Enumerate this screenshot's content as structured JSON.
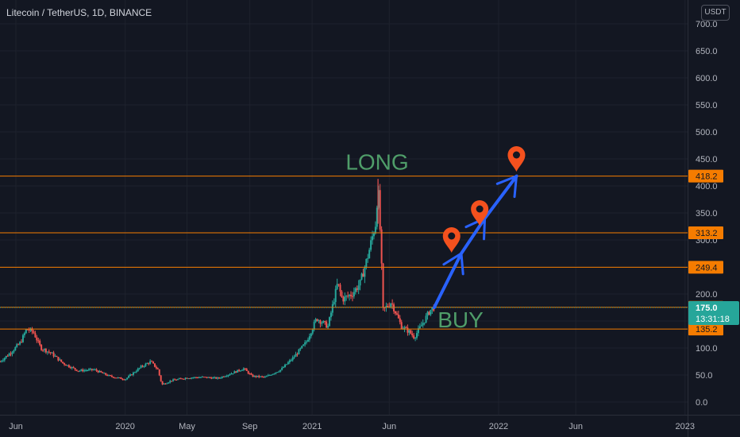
{
  "header": {
    "title": "Litecoin / TetherUS, 1D, BINANCE",
    "currency_label": "USDT"
  },
  "chart_data": {
    "type": "candlestick",
    "y_ticks": [
      "700.0",
      "650.0",
      "600.0",
      "550.0",
      "500.0",
      "450.0",
      "400.0",
      "350.0",
      "300.0",
      "250.0",
      "200.0",
      "150.0",
      "100.0",
      "50.0",
      "0.0"
    ],
    "y_tick_values": [
      700,
      650,
      600,
      550,
      500,
      450,
      400,
      350,
      300,
      250,
      200,
      150,
      100,
      50,
      0
    ],
    "ylim": [
      -10,
      725
    ],
    "x_ticks": [
      "Jun",
      "2020",
      "May",
      "Sep",
      "2021",
      "Jun",
      "2022",
      "Jun",
      "2023"
    ],
    "x_tick_dates": [
      "2019-06-01",
      "2020-01-01",
      "2020-05-01",
      "2020-09-01",
      "2021-01-01",
      "2021-06-01",
      "2022-01-01",
      "2022-06-01",
      "2023-01-01"
    ],
    "xlim": [
      "2019-05-01",
      "2023-01-06"
    ],
    "price_path": [
      [
        "2019-05-01",
        75
      ],
      [
        "2019-05-20",
        90
      ],
      [
        "2019-06-10",
        110
      ],
      [
        "2019-06-22",
        135
      ],
      [
        "2019-07-05",
        130
      ],
      [
        "2019-07-20",
        100
      ],
      [
        "2019-08-10",
        90
      ],
      [
        "2019-09-01",
        72
      ],
      [
        "2019-10-01",
        58
      ],
      [
        "2019-11-01",
        60
      ],
      [
        "2019-12-01",
        48
      ],
      [
        "2020-01-01",
        42
      ],
      [
        "2020-02-01",
        65
      ],
      [
        "2020-02-20",
        75
      ],
      [
        "2020-03-05",
        60
      ],
      [
        "2020-03-13",
        32
      ],
      [
        "2020-04-01",
        40
      ],
      [
        "2020-05-01",
        45
      ],
      [
        "2020-06-01",
        46
      ],
      [
        "2020-07-01",
        44
      ],
      [
        "2020-08-01",
        55
      ],
      [
        "2020-08-20",
        62
      ],
      [
        "2020-09-05",
        48
      ],
      [
        "2020-10-01",
        46
      ],
      [
        "2020-11-01",
        60
      ],
      [
        "2020-11-25",
        82
      ],
      [
        "2020-12-20",
        110
      ],
      [
        "2021-01-10",
        155
      ],
      [
        "2021-02-01",
        140
      ],
      [
        "2021-02-20",
        220
      ],
      [
        "2021-03-01",
        190
      ],
      [
        "2021-03-20",
        200
      ],
      [
        "2021-04-05",
        220
      ],
      [
        "2021-04-20",
        270
      ],
      [
        "2021-05-05",
        330
      ],
      [
        "2021-05-10",
        400
      ],
      [
        "2021-05-15",
        300
      ],
      [
        "2021-05-20",
        170
      ],
      [
        "2021-06-05",
        185
      ],
      [
        "2021-06-25",
        140
      ],
      [
        "2021-07-10",
        130
      ],
      [
        "2021-07-20",
        120
      ],
      [
        "2021-08-05",
        145
      ],
      [
        "2021-08-20",
        170
      ],
      [
        "2021-08-28",
        175
      ]
    ],
    "horizontal_levels": [
      {
        "value": 418.2,
        "label": "418.2",
        "color": "#f57c00"
      },
      {
        "value": 313.2,
        "label": "313.2",
        "color": "#f57c00"
      },
      {
        "value": 249.4,
        "label": "249.4",
        "color": "#f57c00"
      },
      {
        "value": 175.3,
        "label": "175.3",
        "color": "#f57c00"
      },
      {
        "value": 135.2,
        "label": "135.2",
        "color": "#f57c00"
      }
    ],
    "current_price": {
      "value": 175.0,
      "label": "175.0",
      "countdown": "13:31:18",
      "color": "#26a69a"
    },
    "annotations": [
      {
        "text": "LONG",
        "color": "#4f9d69"
      },
      {
        "text": "BUY",
        "color": "#4f9d69"
      }
    ],
    "target_path": [
      [
        "2021-08-28",
        175
      ],
      [
        "2021-10-20",
        275
      ],
      [
        "2021-12-05",
        340
      ],
      [
        "2022-02-05",
        418
      ]
    ],
    "marker_points": [
      [
        "2021-10-01",
        300
      ],
      [
        "2021-11-25",
        350
      ],
      [
        "2022-02-05",
        450
      ]
    ],
    "colors": {
      "background": "#131722",
      "grid": "#1e222d",
      "up": "#26a69a",
      "down": "#ef5350",
      "level": "#f57c00",
      "arrow": "#2962ff",
      "marker": "#f4511e",
      "axis_text": "#b2b5be"
    }
  }
}
